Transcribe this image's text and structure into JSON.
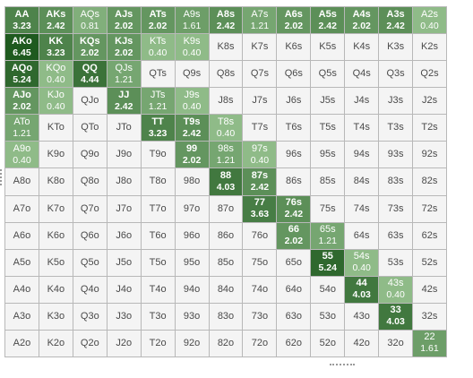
{
  "grid": {
    "rows": [
      [
        [
          "AA",
          "3.23"
        ],
        [
          "AKs",
          "2.42"
        ],
        [
          "AQs",
          "0.81"
        ],
        [
          "AJs",
          "2.02"
        ],
        [
          "ATs",
          "2.02"
        ],
        [
          "A9s",
          "1.61"
        ],
        [
          "A8s",
          "2.42"
        ],
        [
          "A7s",
          "1.21"
        ],
        [
          "A6s",
          "2.02"
        ],
        [
          "A5s",
          "2.42"
        ],
        [
          "A4s",
          "2.02"
        ],
        [
          "A3s",
          "2.42"
        ],
        [
          "A2s",
          "0.40"
        ]
      ],
      [
        [
          "AKo",
          "6.45"
        ],
        [
          "KK",
          "3.23"
        ],
        [
          "KQs",
          "2.02"
        ],
        [
          "KJs",
          "2.02"
        ],
        [
          "KTs",
          "0.40"
        ],
        [
          "K9s",
          "0.40"
        ],
        [
          "K8s",
          ""
        ],
        [
          "K7s",
          ""
        ],
        [
          "K6s",
          ""
        ],
        [
          "K5s",
          ""
        ],
        [
          "K4s",
          ""
        ],
        [
          "K3s",
          ""
        ],
        [
          "K2s",
          ""
        ]
      ],
      [
        [
          "AQo",
          "5.24"
        ],
        [
          "KQo",
          "0.40"
        ],
        [
          "QQ",
          "4.44"
        ],
        [
          "QJs",
          "1.21"
        ],
        [
          "QTs",
          ""
        ],
        [
          "Q9s",
          ""
        ],
        [
          "Q8s",
          ""
        ],
        [
          "Q7s",
          ""
        ],
        [
          "Q6s",
          ""
        ],
        [
          "Q5s",
          ""
        ],
        [
          "Q4s",
          ""
        ],
        [
          "Q3s",
          ""
        ],
        [
          "Q2s",
          ""
        ]
      ],
      [
        [
          "AJo",
          "2.02"
        ],
        [
          "KJo",
          "0.40"
        ],
        [
          "QJo",
          ""
        ],
        [
          "JJ",
          "2.42"
        ],
        [
          "JTs",
          "1.21"
        ],
        [
          "J9s",
          "0.40"
        ],
        [
          "J8s",
          ""
        ],
        [
          "J7s",
          ""
        ],
        [
          "J6s",
          ""
        ],
        [
          "J5s",
          ""
        ],
        [
          "J4s",
          ""
        ],
        [
          "J3s",
          ""
        ],
        [
          "J2s",
          ""
        ]
      ],
      [
        [
          "ATo",
          "1.21"
        ],
        [
          "KTo",
          ""
        ],
        [
          "QTo",
          ""
        ],
        [
          "JTo",
          ""
        ],
        [
          "TT",
          "3.23"
        ],
        [
          "T9s",
          "2.42"
        ],
        [
          "T8s",
          "0.40"
        ],
        [
          "T7s",
          ""
        ],
        [
          "T6s",
          ""
        ],
        [
          "T5s",
          ""
        ],
        [
          "T4s",
          ""
        ],
        [
          "T3s",
          ""
        ],
        [
          "T2s",
          ""
        ]
      ],
      [
        [
          "A9o",
          "0.40"
        ],
        [
          "K9o",
          ""
        ],
        [
          "Q9o",
          ""
        ],
        [
          "J9o",
          ""
        ],
        [
          "T9o",
          ""
        ],
        [
          "99",
          "2.02"
        ],
        [
          "98s",
          "1.21"
        ],
        [
          "97s",
          "0.40"
        ],
        [
          "96s",
          ""
        ],
        [
          "95s",
          ""
        ],
        [
          "94s",
          ""
        ],
        [
          "93s",
          ""
        ],
        [
          "92s",
          ""
        ]
      ],
      [
        [
          "A8o",
          ""
        ],
        [
          "K8o",
          ""
        ],
        [
          "Q8o",
          ""
        ],
        [
          "J8o",
          ""
        ],
        [
          "T8o",
          ""
        ],
        [
          "98o",
          ""
        ],
        [
          "88",
          "4.03"
        ],
        [
          "87s",
          "2.42"
        ],
        [
          "86s",
          ""
        ],
        [
          "85s",
          ""
        ],
        [
          "84s",
          ""
        ],
        [
          "83s",
          ""
        ],
        [
          "82s",
          ""
        ]
      ],
      [
        [
          "A7o",
          ""
        ],
        [
          "K7o",
          ""
        ],
        [
          "Q7o",
          ""
        ],
        [
          "J7o",
          ""
        ],
        [
          "T7o",
          ""
        ],
        [
          "97o",
          ""
        ],
        [
          "87o",
          ""
        ],
        [
          "77",
          "3.63"
        ],
        [
          "76s",
          "2.42"
        ],
        [
          "75s",
          ""
        ],
        [
          "74s",
          ""
        ],
        [
          "73s",
          ""
        ],
        [
          "72s",
          ""
        ]
      ],
      [
        [
          "A6o",
          ""
        ],
        [
          "K6o",
          ""
        ],
        [
          "Q6o",
          ""
        ],
        [
          "J6o",
          ""
        ],
        [
          "T6o",
          ""
        ],
        [
          "96o",
          ""
        ],
        [
          "86o",
          ""
        ],
        [
          "76o",
          ""
        ],
        [
          "66",
          "2.02"
        ],
        [
          "65s",
          "1.21"
        ],
        [
          "64s",
          ""
        ],
        [
          "63s",
          ""
        ],
        [
          "62s",
          ""
        ]
      ],
      [
        [
          "A5o",
          ""
        ],
        [
          "K5o",
          ""
        ],
        [
          "Q5o",
          ""
        ],
        [
          "J5o",
          ""
        ],
        [
          "T5o",
          ""
        ],
        [
          "95o",
          ""
        ],
        [
          "85o",
          ""
        ],
        [
          "75o",
          ""
        ],
        [
          "65o",
          ""
        ],
        [
          "55",
          "5.24"
        ],
        [
          "54s",
          "0.40"
        ],
        [
          "53s",
          ""
        ],
        [
          "52s",
          ""
        ]
      ],
      [
        [
          "A4o",
          ""
        ],
        [
          "K4o",
          ""
        ],
        [
          "Q4o",
          ""
        ],
        [
          "J4o",
          ""
        ],
        [
          "T4o",
          ""
        ],
        [
          "94o",
          ""
        ],
        [
          "84o",
          ""
        ],
        [
          "74o",
          ""
        ],
        [
          "64o",
          ""
        ],
        [
          "54o",
          ""
        ],
        [
          "44",
          "4.03"
        ],
        [
          "43s",
          "0.40"
        ],
        [
          "42s",
          ""
        ]
      ],
      [
        [
          "A3o",
          ""
        ],
        [
          "K3o",
          ""
        ],
        [
          "Q3o",
          ""
        ],
        [
          "J3o",
          ""
        ],
        [
          "T3o",
          ""
        ],
        [
          "93o",
          ""
        ],
        [
          "83o",
          ""
        ],
        [
          "73o",
          ""
        ],
        [
          "63o",
          ""
        ],
        [
          "53o",
          ""
        ],
        [
          "43o",
          ""
        ],
        [
          "33",
          "4.03"
        ],
        [
          "32s",
          ""
        ]
      ],
      [
        [
          "A2o",
          ""
        ],
        [
          "K2o",
          ""
        ],
        [
          "Q2o",
          ""
        ],
        [
          "J2o",
          ""
        ],
        [
          "T2o",
          ""
        ],
        [
          "92o",
          ""
        ],
        [
          "82o",
          ""
        ],
        [
          "72o",
          ""
        ],
        [
          "62o",
          ""
        ],
        [
          "52o",
          ""
        ],
        [
          "42o",
          ""
        ],
        [
          "32o",
          ""
        ],
        [
          "22",
          "1.61"
        ]
      ]
    ]
  },
  "colors": {
    "empty_bg": "#f4f4f4",
    "scale_low": "#a9d2a0",
    "scale_high": "#1f5a1f",
    "grid_line": "#b8b8b8"
  },
  "scale_max": 6.45
}
